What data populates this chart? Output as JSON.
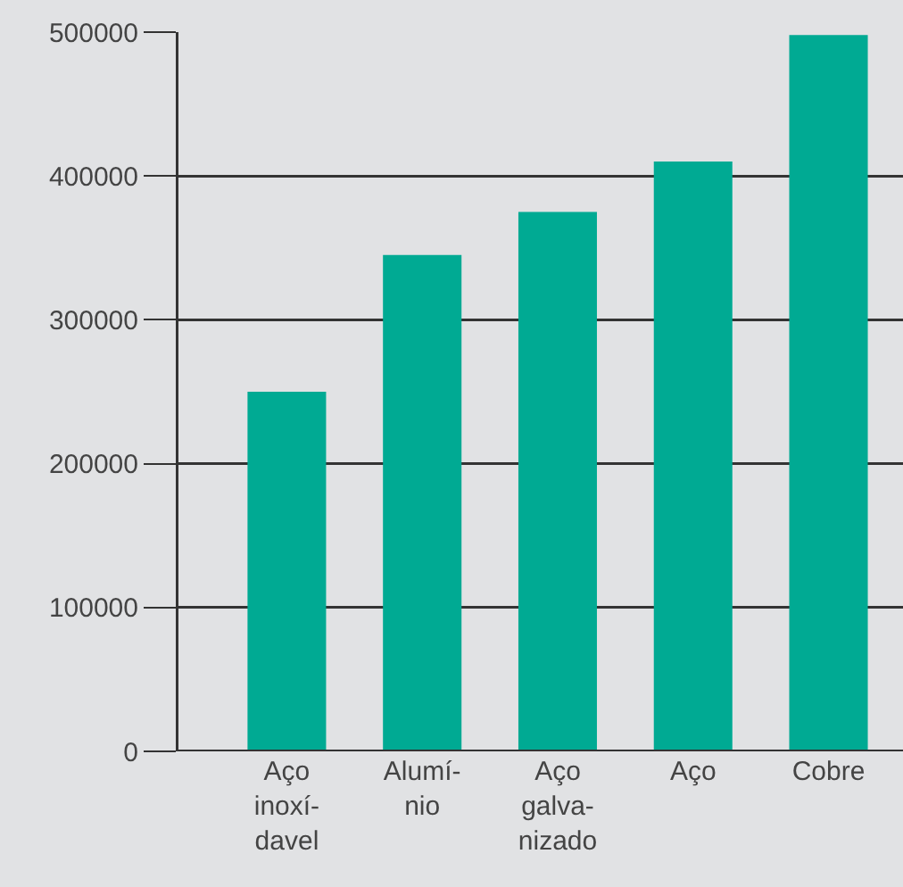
{
  "chart_data": {
    "type": "bar",
    "categories": [
      "Aço\ninoxí-\ndavel",
      "Alumí-\nnio",
      "Aço\ngalva-\nnizado",
      "Aço",
      "Cobre"
    ],
    "values": [
      250000,
      345000,
      375000,
      410000,
      498000
    ],
    "color": "#00aa93",
    "ylim": [
      0,
      500000
    ],
    "yticks": [
      0,
      100000,
      200000,
      300000,
      400000,
      500000
    ],
    "grid": "y",
    "legend": false
  }
}
